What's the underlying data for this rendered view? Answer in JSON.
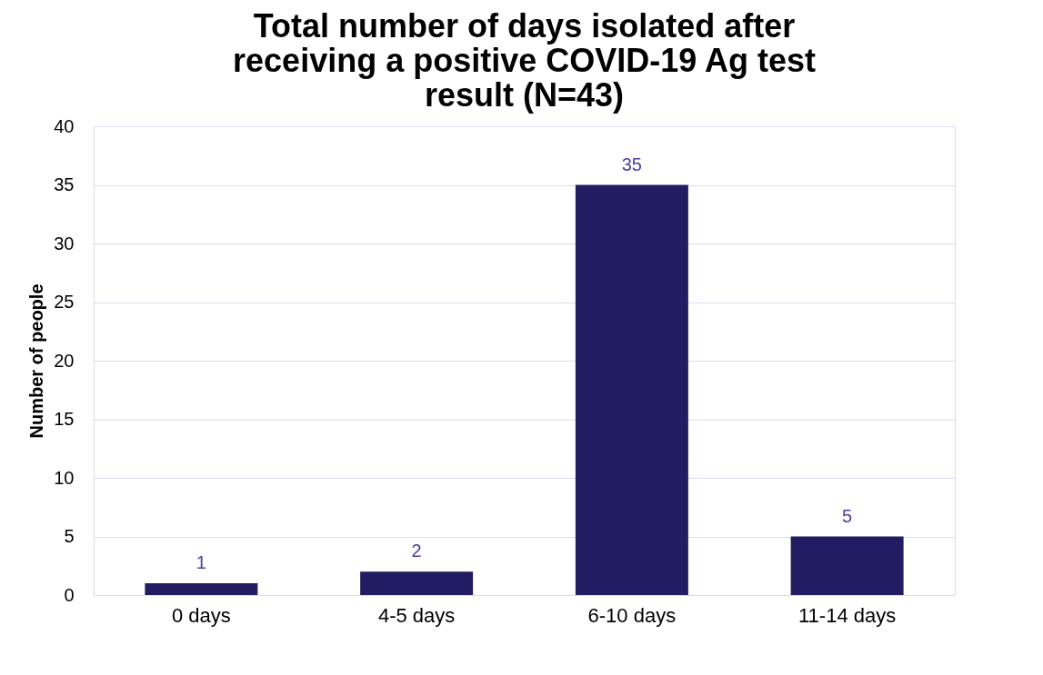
{
  "chart_data": {
    "type": "bar",
    "title": "Total number of days isolated after receiving a positive COVID-19 Ag test result (N=43)",
    "ylabel": "Number of people",
    "categories": [
      "0 days",
      "4-5 days",
      "6-10 days",
      "11-14 days"
    ],
    "values": [
      1,
      2,
      35,
      5
    ],
    "color": "#221c63",
    "ylim": [
      0,
      40
    ],
    "yticks": [
      0,
      5,
      10,
      15,
      20,
      25,
      30,
      35,
      40
    ],
    "grid": "y",
    "data_labels": true
  }
}
